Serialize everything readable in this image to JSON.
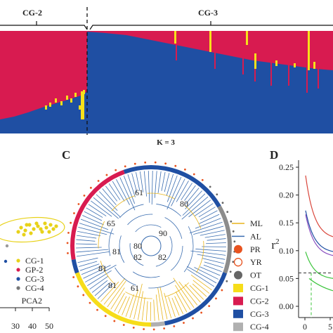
{
  "chart_data": [
    {
      "type": "bar",
      "panel": "structure",
      "groups": [
        "CG-2",
        "CG-3"
      ],
      "xlabel": "K = 3",
      "ylim": [
        0,
        1
      ],
      "series": [
        {
          "name": "",
          "color": "#1f4fa3"
        },
        {
          "name": "",
          "color": "#d81b50"
        },
        {
          "name": "",
          "color": "#f6e11a"
        }
      ]
    },
    {
      "type": "scatter",
      "panel": "pca",
      "xlabel": "PCA2",
      "x_ticks": [
        "30",
        "40",
        "50"
      ],
      "legend": [
        {
          "name": "CG-1",
          "color": "#e8d21a"
        },
        {
          "name": "GP-2",
          "color": "#d81b50"
        },
        {
          "name": "CG-3",
          "color": "#1f4fa3"
        },
        {
          "name": "CG-4",
          "color": "#777777"
        }
      ]
    },
    {
      "type": "tree",
      "panel": "C",
      "panel_label": "C",
      "bootstrap_labels": [
        "61",
        "80",
        "65",
        "90",
        "80",
        "82",
        "82",
        "81",
        "81",
        "61",
        "81"
      ],
      "legend": [
        {
          "name": "ML",
          "color": "#e8b41a",
          "shape": "line"
        },
        {
          "name": "AL",
          "color": "#3a6db0",
          "shape": "line"
        },
        {
          "name": "PR",
          "color": "#e8531f",
          "shape": "filled-circle"
        },
        {
          "name": "YR",
          "color": "#e8531f",
          "shape": "open-circle"
        },
        {
          "name": "OT",
          "color": "#666666",
          "shape": "filled-circle"
        },
        {
          "name": "CG-1",
          "color": "#f6dd1a",
          "shape": "square"
        },
        {
          "name": "CG-2",
          "color": "#d81b50",
          "shape": "square"
        },
        {
          "name": "CG-3",
          "color": "#1f4fa3",
          "shape": "square"
        },
        {
          "name": "CG-4",
          "color": "#b0b0b0",
          "shape": "square"
        }
      ]
    },
    {
      "type": "line",
      "panel": "D",
      "panel_label": "D",
      "ylabel": "r",
      "ylabel_sup": "2",
      "y_ticks": [
        "0.25",
        "0.20",
        "0.15",
        "0.10",
        "0.05",
        "0.00"
      ],
      "ylim": [
        0,
        0.25
      ],
      "x_ticks": [
        "0",
        "5"
      ],
      "threshold": 0.06,
      "series": [
        {
          "name": "",
          "color": "#d9453a"
        },
        {
          "name": "",
          "color": "#1f4fa3"
        },
        {
          "name": "",
          "color": "#8a4fc0"
        },
        {
          "name": "",
          "color": "#3bc43b"
        }
      ]
    }
  ]
}
